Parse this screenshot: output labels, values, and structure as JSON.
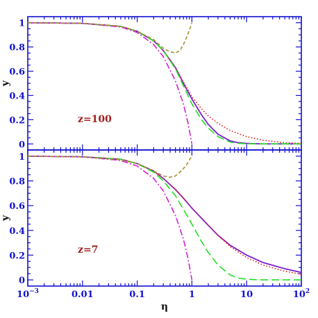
{
  "chart_data": {
    "type": "line",
    "xlabel": "η",
    "x_scale": "log",
    "xlim": [
      0.001,
      100
    ],
    "x_ticks": [
      {
        "value": 0.001,
        "base": "10",
        "exp": "−3"
      },
      {
        "value": 0.01,
        "text": "0.01"
      },
      {
        "value": 0.1,
        "text": "0.1"
      },
      {
        "value": 1,
        "text": "1"
      },
      {
        "value": 10,
        "text": "10"
      },
      {
        "value": 100,
        "base": "10",
        "exp": "2"
      }
    ],
    "panels": [
      {
        "annotation": "z=100",
        "ylabel": "y",
        "ylim": [
          -0.05,
          1.05
        ],
        "y_ticks": [
          "0",
          "0.2",
          "0.4",
          "0.6",
          "0.8",
          "1"
        ],
        "y_tick_values": [
          0,
          0.2,
          0.4,
          0.6,
          0.8,
          1
        ],
        "series": [
          {
            "style": "solid",
            "color": "#7a1fd0",
            "points": [
              [
                0.001,
                1.0
              ],
              [
                0.01,
                0.995
              ],
              [
                0.05,
                0.97
              ],
              [
                0.1,
                0.93
              ],
              [
                0.2,
                0.85
              ],
              [
                0.3,
                0.77
              ],
              [
                0.5,
                0.63
              ],
              [
                0.7,
                0.5
              ],
              [
                1,
                0.37
              ],
              [
                1.5,
                0.24
              ],
              [
                2,
                0.16
              ],
              [
                3,
                0.08
              ],
              [
                5,
                0.025
              ],
              [
                7,
                0.01
              ],
              [
                10,
                0.004
              ],
              [
                20,
                0.0
              ],
              [
                100,
                0.0
              ]
            ]
          },
          {
            "style": "dotted",
            "color": "#e02020",
            "points": [
              [
                0.001,
                1.0
              ],
              [
                0.01,
                0.995
              ],
              [
                0.05,
                0.97
              ],
              [
                0.1,
                0.93
              ],
              [
                0.2,
                0.85
              ],
              [
                0.3,
                0.77
              ],
              [
                0.5,
                0.63
              ],
              [
                0.7,
                0.51
              ],
              [
                1,
                0.39
              ],
              [
                1.5,
                0.29
              ],
              [
                2,
                0.23
              ],
              [
                3,
                0.17
              ],
              [
                5,
                0.11
              ],
              [
                10,
                0.06
              ],
              [
                20,
                0.03
              ],
              [
                50,
                0.01
              ],
              [
                100,
                0.005
              ]
            ]
          },
          {
            "style": "long-dash",
            "color": "#22dd22",
            "points": [
              [
                0.001,
                1.0
              ],
              [
                0.01,
                0.995
              ],
              [
                0.05,
                0.97
              ],
              [
                0.1,
                0.93
              ],
              [
                0.2,
                0.85
              ],
              [
                0.3,
                0.77
              ],
              [
                0.5,
                0.62
              ],
              [
                0.7,
                0.48
              ],
              [
                1,
                0.33
              ],
              [
                1.5,
                0.2
              ],
              [
                2,
                0.13
              ],
              [
                3,
                0.06
              ],
              [
                5,
                0.015
              ],
              [
                7,
                0.005
              ],
              [
                10,
                0.001
              ],
              [
                100,
                0.0
              ]
            ]
          },
          {
            "style": "dash-dot",
            "color": "#d020d0",
            "points": [
              [
                0.001,
                1.0
              ],
              [
                0.01,
                0.995
              ],
              [
                0.05,
                0.965
              ],
              [
                0.1,
                0.92
              ],
              [
                0.2,
                0.82
              ],
              [
                0.3,
                0.72
              ],
              [
                0.5,
                0.52
              ],
              [
                0.7,
                0.33
              ],
              [
                0.85,
                0.17
              ],
              [
                1,
                0.0
              ]
            ]
          },
          {
            "style": "short-dash",
            "color": "#a09030",
            "points": [
              [
                0.001,
                1.0
              ],
              [
                0.01,
                0.995
              ],
              [
                0.05,
                0.97
              ],
              [
                0.1,
                0.93
              ],
              [
                0.2,
                0.86
              ],
              [
                0.3,
                0.79
              ],
              [
                0.4,
                0.76
              ],
              [
                0.5,
                0.75
              ],
              [
                0.6,
                0.77
              ],
              [
                0.7,
                0.82
              ],
              [
                0.8,
                0.88
              ],
              [
                0.9,
                0.94
              ],
              [
                1,
                1.0
              ]
            ]
          }
        ]
      },
      {
        "annotation": "z=7",
        "ylabel": "y",
        "ylim": [
          -0.05,
          1.05
        ],
        "y_ticks": [
          "0",
          "0.2",
          "0.4",
          "0.6",
          "0.8",
          "1"
        ],
        "y_tick_values": [
          0,
          0.2,
          0.4,
          0.6,
          0.8,
          1
        ],
        "series": [
          {
            "style": "solid",
            "color": "#7a1fd0",
            "points": [
              [
                0.001,
                1.0
              ],
              [
                0.01,
                0.995
              ],
              [
                0.05,
                0.975
              ],
              [
                0.1,
                0.94
              ],
              [
                0.2,
                0.88
              ],
              [
                0.3,
                0.82
              ],
              [
                0.5,
                0.73
              ],
              [
                0.7,
                0.66
              ],
              [
                1,
                0.58
              ],
              [
                2,
                0.44
              ],
              [
                3,
                0.36
              ],
              [
                5,
                0.28
              ],
              [
                10,
                0.2
              ],
              [
                20,
                0.14
              ],
              [
                50,
                0.09
              ],
              [
                100,
                0.06
              ]
            ]
          },
          {
            "style": "dotted",
            "color": "#e02020",
            "points": [
              [
                0.001,
                1.0
              ],
              [
                0.01,
                0.995
              ],
              [
                0.05,
                0.975
              ],
              [
                0.1,
                0.94
              ],
              [
                0.2,
                0.88
              ],
              [
                0.3,
                0.82
              ],
              [
                0.5,
                0.73
              ],
              [
                0.7,
                0.66
              ],
              [
                1,
                0.58
              ],
              [
                2,
                0.44
              ],
              [
                3,
                0.36
              ],
              [
                5,
                0.27
              ],
              [
                10,
                0.18
              ],
              [
                20,
                0.12
              ],
              [
                50,
                0.07
              ],
              [
                100,
                0.045
              ]
            ]
          },
          {
            "style": "long-dash",
            "color": "#22dd22",
            "points": [
              [
                0.001,
                1.0
              ],
              [
                0.01,
                0.995
              ],
              [
                0.05,
                0.975
              ],
              [
                0.1,
                0.94
              ],
              [
                0.2,
                0.87
              ],
              [
                0.3,
                0.8
              ],
              [
                0.5,
                0.68
              ],
              [
                0.7,
                0.57
              ],
              [
                1,
                0.45
              ],
              [
                1.5,
                0.31
              ],
              [
                2,
                0.22
              ],
              [
                3,
                0.12
              ],
              [
                5,
                0.04
              ],
              [
                7,
                0.015
              ],
              [
                10,
                0.005
              ],
              [
                20,
                0.0
              ],
              [
                100,
                0.0
              ]
            ]
          },
          {
            "style": "dash-dot",
            "color": "#d020d0",
            "points": [
              [
                0.001,
                1.0
              ],
              [
                0.01,
                0.995
              ],
              [
                0.05,
                0.965
              ],
              [
                0.1,
                0.92
              ],
              [
                0.2,
                0.82
              ],
              [
                0.3,
                0.72
              ],
              [
                0.5,
                0.52
              ],
              [
                0.7,
                0.33
              ],
              [
                0.85,
                0.17
              ],
              [
                1,
                0.0
              ]
            ]
          },
          {
            "style": "short-dash",
            "color": "#a09030",
            "points": [
              [
                0.001,
                1.0
              ],
              [
                0.01,
                0.995
              ],
              [
                0.05,
                0.97
              ],
              [
                0.1,
                0.94
              ],
              [
                0.2,
                0.88
              ],
              [
                0.3,
                0.84
              ],
              [
                0.4,
                0.83
              ],
              [
                0.5,
                0.84
              ],
              [
                0.6,
                0.87
              ],
              [
                0.7,
                0.9
              ],
              [
                0.8,
                0.93
              ],
              [
                0.9,
                0.97
              ],
              [
                1,
                1.0
              ]
            ]
          }
        ]
      }
    ]
  }
}
